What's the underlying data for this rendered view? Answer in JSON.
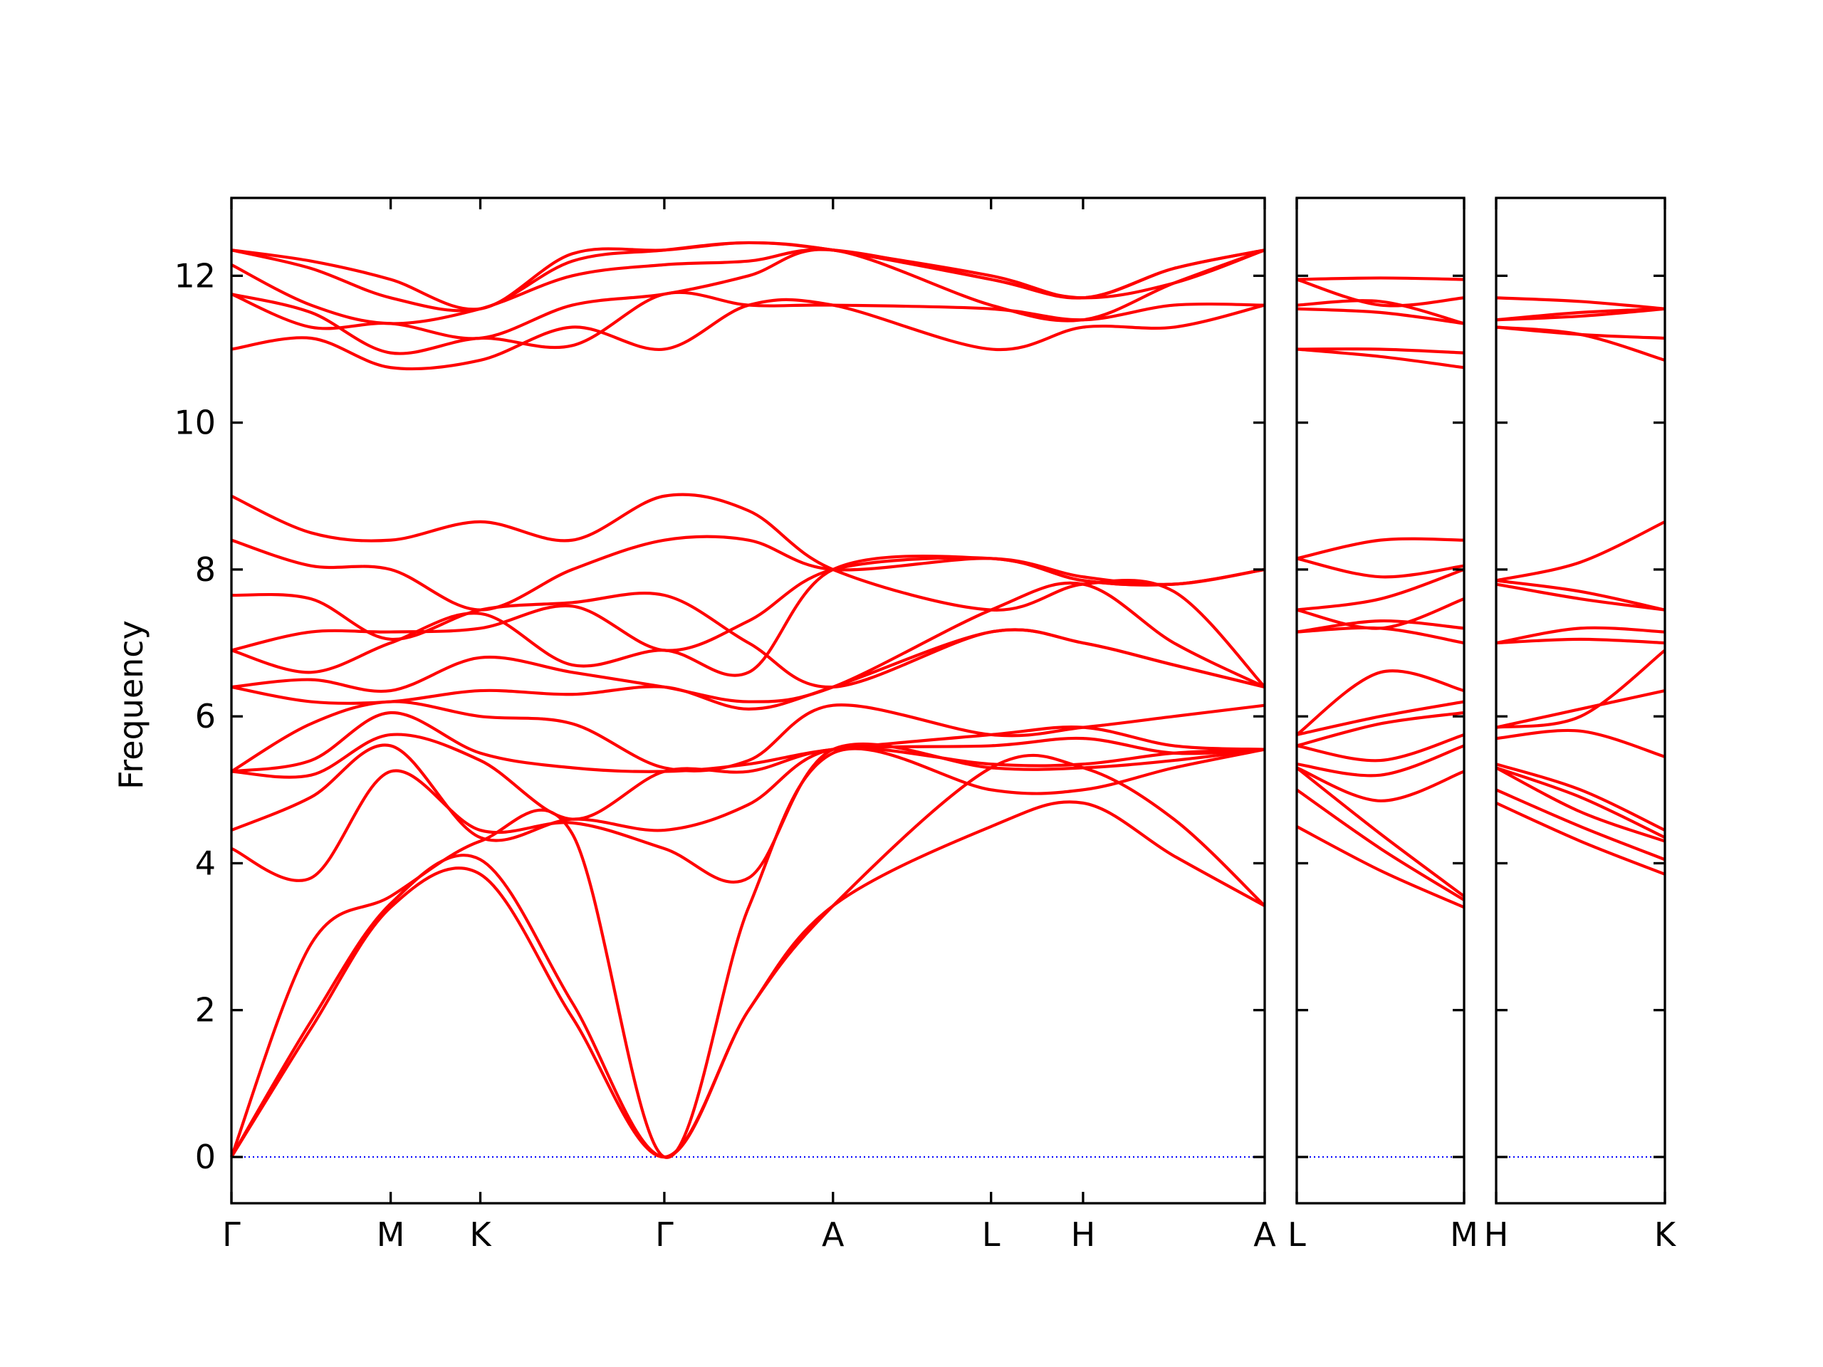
{
  "chart_data": [
    {
      "type": "line",
      "y_label": "Frequency",
      "color": "#ff0000",
      "ylim": [
        -0.63,
        13.06
      ],
      "yticks": [
        0,
        2,
        4,
        6,
        8,
        10,
        12
      ],
      "hline": 0,
      "hline_color": "#0000ff",
      "xlim": [
        0,
        8.76
      ],
      "xticks": [
        {
          "value": 0,
          "label": "Γ"
        },
        {
          "value": 1.35,
          "label": "M"
        },
        {
          "value": 2.11,
          "label": "K"
        },
        {
          "value": 3.67,
          "label": "Γ"
        },
        {
          "value": 5.1,
          "label": "A"
        },
        {
          "value": 6.44,
          "label": "L"
        },
        {
          "value": 7.22,
          "label": "H"
        },
        {
          "value": 8.76,
          "label": "A"
        }
      ],
      "x": [
        0,
        0.675,
        1.35,
        2.11,
        2.89,
        3.67,
        4.385,
        5.1,
        6.44,
        7.22,
        7.99,
        8.76
      ],
      "series": [
        {
          "values": [
            0,
            1.75,
            3.4,
            3.85,
            1.9,
            0,
            2.0,
            3.42,
            4.5,
            4.82,
            4.1,
            3.42
          ]
        },
        {
          "values": [
            0,
            1.85,
            3.45,
            4.05,
            2.1,
            0,
            2.0,
            3.42,
            5.3,
            5.3,
            4.6,
            3.42
          ]
        },
        {
          "values": [
            0,
            2.9,
            3.55,
            4.3,
            4.4,
            0,
            3.4,
            5.5,
            5.0,
            5.0,
            5.3,
            5.55
          ]
        },
        {
          "values": [
            4.2,
            3.8,
            5.25,
            4.45,
            4.55,
            4.2,
            3.8,
            5.55,
            5.3,
            5.3,
            5.4,
            5.55
          ]
        },
        {
          "values": [
            4.45,
            4.9,
            5.6,
            4.35,
            4.6,
            4.45,
            4.8,
            5.55,
            5.35,
            5.35,
            5.5,
            5.55
          ]
        },
        {
          "values": [
            5.25,
            5.2,
            5.75,
            5.4,
            4.6,
            5.25,
            5.25,
            5.55,
            5.6,
            5.7,
            5.5,
            5.55
          ]
        },
        {
          "values": [
            5.25,
            5.4,
            6.05,
            5.5,
            5.3,
            5.25,
            5.35,
            5.55,
            5.75,
            5.85,
            5.6,
            5.55
          ]
        },
        {
          "values": [
            5.25,
            5.9,
            6.2,
            6.0,
            5.9,
            5.3,
            5.4,
            6.15,
            5.75,
            5.85,
            6.0,
            6.15
          ]
        },
        {
          "values": [
            6.4,
            6.2,
            6.2,
            6.35,
            6.3,
            6.4,
            6.1,
            6.4,
            7.15,
            7.0,
            6.7,
            6.4
          ]
        },
        {
          "values": [
            6.4,
            6.5,
            6.35,
            6.8,
            6.6,
            6.4,
            6.2,
            6.4,
            7.45,
            7.8,
            7.0,
            6.4
          ]
        },
        {
          "values": [
            6.9,
            6.6,
            7.0,
            7.4,
            6.7,
            6.9,
            6.6,
            8.0,
            8.15,
            7.85,
            7.8,
            8.0
          ]
        },
        {
          "values": [
            6.9,
            7.15,
            7.15,
            7.2,
            7.5,
            6.9,
            7.3,
            8.0,
            8.15,
            7.85,
            7.8,
            8.0
          ]
        },
        {
          "values": [
            7.65,
            7.6,
            7.05,
            7.45,
            7.55,
            7.65,
            7.0,
            6.4,
            7.15,
            7.0,
            6.7,
            6.4
          ]
        },
        {
          "values": [
            8.4,
            8.05,
            8.0,
            7.45,
            8.0,
            8.4,
            8.4,
            8.0,
            8.15,
            7.9,
            7.8,
            8.0
          ]
        },
        {
          "values": [
            9.0,
            8.5,
            8.4,
            8.65,
            8.4,
            9.0,
            8.8,
            8.0,
            7.45,
            7.8,
            7.7,
            6.4
          ]
        },
        {
          "values": [
            11.0,
            11.15,
            10.75,
            10.85,
            11.3,
            11.0,
            11.6,
            11.6,
            11.0,
            11.3,
            11.3,
            11.6
          ]
        },
        {
          "values": [
            11.75,
            11.5,
            10.95,
            11.15,
            11.05,
            11.75,
            11.6,
            11.6,
            11.55,
            11.4,
            11.6,
            11.6
          ]
        },
        {
          "values": [
            11.75,
            11.3,
            11.35,
            11.15,
            11.6,
            11.75,
            12.0,
            12.35,
            11.6,
            11.4,
            11.9,
            12.35
          ]
        },
        {
          "values": [
            12.15,
            11.6,
            11.35,
            11.55,
            12.0,
            12.15,
            12.2,
            12.35,
            11.95,
            11.7,
            11.9,
            12.35
          ]
        },
        {
          "values": [
            12.35,
            12.1,
            11.7,
            11.55,
            12.2,
            12.35,
            12.45,
            12.35,
            11.95,
            11.7,
            12.1,
            12.35
          ]
        },
        {
          "values": [
            12.35,
            12.2,
            11.95,
            11.55,
            12.3,
            12.35,
            12.45,
            12.35,
            12.0,
            11.7,
            12.1,
            12.35
          ]
        }
      ]
    },
    {
      "type": "line",
      "color": "#ff0000",
      "xlim": [
        0,
        1.42
      ],
      "xticks": [
        {
          "value": 0,
          "label": "L"
        },
        {
          "value": 1.42,
          "label": "M"
        }
      ],
      "x": [
        0,
        0.71,
        1.42
      ],
      "series": [
        {
          "values": [
            4.5,
            3.9,
            3.4
          ]
        },
        {
          "values": [
            5.0,
            4.2,
            3.5
          ]
        },
        {
          "values": [
            5.3,
            4.4,
            3.55
          ]
        },
        {
          "values": [
            5.3,
            4.85,
            5.25
          ]
        },
        {
          "values": [
            5.35,
            5.2,
            5.6
          ]
        },
        {
          "values": [
            5.6,
            5.4,
            5.75
          ]
        },
        {
          "values": [
            5.6,
            5.9,
            6.05
          ]
        },
        {
          "values": [
            5.75,
            6.0,
            6.2
          ]
        },
        {
          "values": [
            5.75,
            6.6,
            6.35
          ]
        },
        {
          "values": [
            7.15,
            7.2,
            7.0
          ]
        },
        {
          "values": [
            7.15,
            7.3,
            7.2
          ]
        },
        {
          "values": [
            7.45,
            7.2,
            7.6
          ]
        },
        {
          "values": [
            7.45,
            7.6,
            8.0
          ]
        },
        {
          "values": [
            8.15,
            7.9,
            8.05
          ]
        },
        {
          "values": [
            8.15,
            8.4,
            8.4
          ]
        },
        {
          "values": [
            11.0,
            10.9,
            10.75
          ]
        },
        {
          "values": [
            11.0,
            11.0,
            10.95
          ]
        },
        {
          "values": [
            11.55,
            11.5,
            11.35
          ]
        },
        {
          "values": [
            11.6,
            11.65,
            11.35
          ]
        },
        {
          "values": [
            11.95,
            11.6,
            11.7
          ]
        },
        {
          "values": [
            11.95,
            11.97,
            11.95
          ]
        }
      ]
    },
    {
      "type": "line",
      "color": "#ff0000",
      "xlim": [
        0,
        1.43
      ],
      "xticks": [
        {
          "value": 0,
          "label": "H"
        },
        {
          "value": 1.43,
          "label": "K"
        }
      ],
      "x": [
        0,
        0.715,
        1.43
      ],
      "series": [
        {
          "values": [
            4.82,
            4.3,
            3.85
          ]
        },
        {
          "values": [
            5.0,
            4.5,
            4.05
          ]
        },
        {
          "values": [
            5.3,
            4.7,
            4.3
          ]
        },
        {
          "values": [
            5.3,
            4.9,
            4.35
          ]
        },
        {
          "values": [
            5.35,
            5.0,
            4.45
          ]
        },
        {
          "values": [
            5.7,
            5.8,
            5.45
          ]
        },
        {
          "values": [
            5.85,
            6.1,
            6.35
          ]
        },
        {
          "values": [
            5.85,
            6.0,
            6.9
          ]
        },
        {
          "values": [
            7.0,
            7.05,
            7.0
          ]
        },
        {
          "values": [
            7.0,
            7.2,
            7.15
          ]
        },
        {
          "values": [
            7.8,
            7.6,
            7.45
          ]
        },
        {
          "values": [
            7.85,
            7.7,
            7.45
          ]
        },
        {
          "values": [
            7.85,
            8.1,
            8.65
          ]
        },
        {
          "values": [
            11.3,
            11.2,
            10.85
          ]
        },
        {
          "values": [
            11.3,
            11.2,
            11.15
          ]
        },
        {
          "values": [
            11.4,
            11.45,
            11.55
          ]
        },
        {
          "values": [
            11.4,
            11.5,
            11.55
          ]
        },
        {
          "values": [
            11.7,
            11.65,
            11.55
          ]
        }
      ]
    }
  ]
}
